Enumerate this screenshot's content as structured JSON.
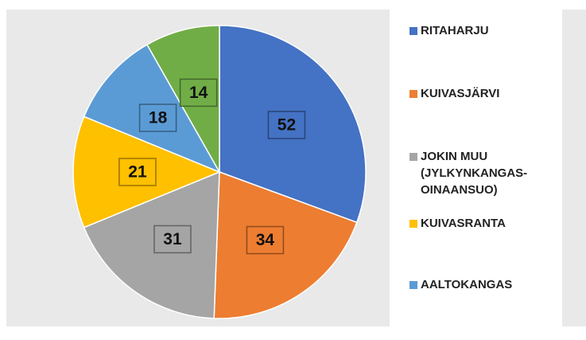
{
  "chart_data": {
    "type": "pie",
    "categories": [
      "RITAHARJU",
      "KUIVASJÄRVI",
      "JOKIN MUU (JYLKYNKANGAS-OINAANSUO)",
      "KUIVASRANTA",
      "AALTOKANGAS",
      null
    ],
    "values": [
      52,
      34,
      31,
      21,
      18,
      14
    ],
    "colors": [
      "#4472c4",
      "#ed7d31",
      "#a5a5a5",
      "#ffc000",
      "#5b9bd5",
      "#70ad47"
    ],
    "legend": "right"
  }
}
